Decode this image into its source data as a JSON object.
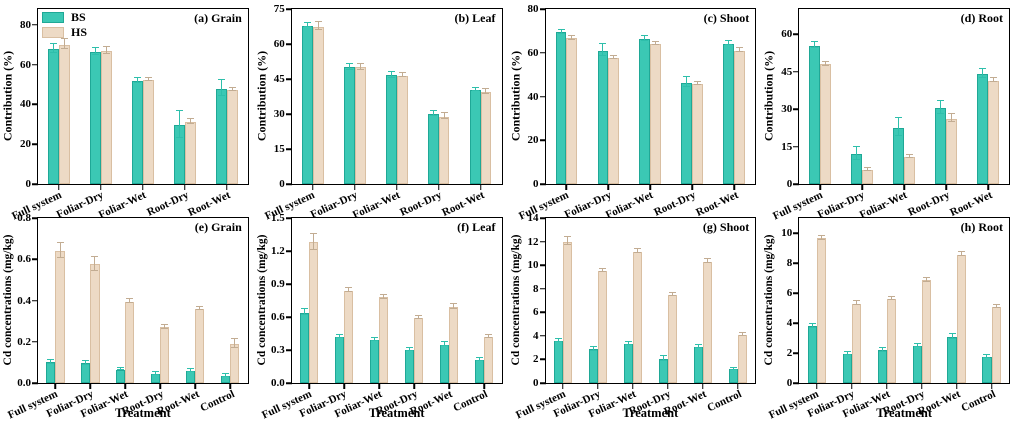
{
  "figure": {
    "legend": {
      "items": [
        {
          "label": "BS",
          "color": "#3bc8b4"
        },
        {
          "label": "HS",
          "color": "#eddac5"
        }
      ]
    },
    "colors": {
      "bs_fill": "#3bc8b4",
      "bs_edge": "#1fa896",
      "bs_err": "#2ebfab",
      "hs_fill": "#eddac5",
      "hs_edge": "#d9bfa2",
      "hs_err": "#c2ac92",
      "axis": "#000000"
    }
  },
  "chart_data": [
    {
      "id": "a",
      "type": "bar",
      "title": "(a) Grain",
      "ylabel": "Contribution (%)",
      "xlabel": "",
      "categories": [
        "Full system",
        "Foliar-Dry",
        "Foliar-Wet",
        "Root-Dry",
        "Root-Wet"
      ],
      "ylim": [
        0,
        88
      ],
      "yticks": [
        "0",
        "20",
        "40",
        "60",
        "80"
      ],
      "grid": false,
      "legend_position": "top-left",
      "series": [
        {
          "name": "BS",
          "values": [
            68,
            66.5,
            52,
            29.5,
            48
          ],
          "errors": [
            2,
            1.5,
            1,
            6.5,
            3.8
          ]
        },
        {
          "name": "HS",
          "values": [
            70,
            67,
            52.2,
            31,
            47.2
          ],
          "errors": [
            2.2,
            1.6,
            0.5,
            1,
            0.6
          ]
        }
      ]
    },
    {
      "id": "b",
      "type": "bar",
      "title": "(b) Leaf",
      "ylabel": "Contribution (%)",
      "xlabel": "",
      "categories": [
        "Full system",
        "Foliar-Dry",
        "Foliar-Wet",
        "Root-Dry",
        "Root-Wet"
      ],
      "ylim": [
        0,
        75
      ],
      "yticks": [
        "0",
        "15",
        "30",
        "45",
        "60",
        "75"
      ],
      "grid": false,
      "series": [
        {
          "name": "BS",
          "values": [
            67.8,
            50,
            46.6,
            30,
            40.3
          ],
          "errors": [
            0.6,
            1,
            1,
            1,
            0.5
          ]
        },
        {
          "name": "HS",
          "values": [
            67.4,
            50,
            46.4,
            28.8,
            39.4
          ],
          "errors": [
            1.6,
            1.2,
            0.6,
            1,
            0.8
          ]
        }
      ]
    },
    {
      "id": "c",
      "type": "bar",
      "title": "(c) Shoot",
      "ylabel": "Contribution (%)",
      "xlabel": "",
      "categories": [
        "Full system",
        "Foliar-Dry",
        "Foliar-Wet",
        "Root-Dry",
        "Root-Wet"
      ],
      "ylim": [
        0,
        80
      ],
      "yticks": [
        "0",
        "20",
        "40",
        "60",
        "80"
      ],
      "grid": false,
      "series": [
        {
          "name": "BS",
          "values": [
            69.4,
            61,
            66.4,
            46.4,
            64.2
          ],
          "errors": [
            0.6,
            2.4,
            0.8,
            2.2,
            0.8
          ]
        },
        {
          "name": "HS",
          "values": [
            66.6,
            57.6,
            64,
            45.8,
            61
          ],
          "errors": [
            0.8,
            0.6,
            0.6,
            0.6,
            0.8
          ]
        }
      ]
    },
    {
      "id": "d",
      "type": "bar",
      "title": "(d) Root",
      "ylabel": "Contribution (%)",
      "xlabel": "",
      "categories": [
        "Full system",
        "Foliar-Dry",
        "Foliar-Wet",
        "Root-Dry",
        "Root-Wet"
      ],
      "ylim": [
        0,
        70
      ],
      "yticks": [
        "0",
        "15",
        "30",
        "45",
        "60"
      ],
      "grid": false,
      "series": [
        {
          "name": "BS",
          "values": [
            55.4,
            12,
            22.6,
            30.4,
            44
          ],
          "errors": [
            1,
            2.4,
            3.4,
            2.4,
            1.6
          ]
        },
        {
          "name": "HS",
          "values": [
            48,
            5.6,
            10.8,
            26.2,
            41.4
          ],
          "errors": [
            0.6,
            0.5,
            0.5,
            1.4,
            0.6
          ]
        }
      ]
    },
    {
      "id": "e",
      "type": "bar",
      "title": "(e) Grain",
      "ylabel": "Cd concentrations (mg/kg)",
      "xlabel": "Treatment",
      "categories": [
        "Full system",
        "Foliar-Dry",
        "Foliar-Wet",
        "Root-Dry",
        "Root-Wet",
        "Control"
      ],
      "ylim": [
        0,
        0.8
      ],
      "yticks": [
        "0.0",
        "0.2",
        "0.4",
        "0.6",
        "0.8"
      ],
      "grid": false,
      "series": [
        {
          "name": "BS",
          "values": [
            0.1,
            0.095,
            0.065,
            0.045,
            0.06,
            0.035
          ],
          "errors": [
            0.008,
            0.006,
            0.004,
            0.004,
            0.005,
            0.004
          ]
        },
        {
          "name": "HS",
          "values": [
            0.64,
            0.575,
            0.395,
            0.27,
            0.36,
            0.19
          ],
          "errors": [
            0.035,
            0.03,
            0.008,
            0.006,
            0.006,
            0.02
          ]
        }
      ]
    },
    {
      "id": "f",
      "type": "bar",
      "title": "(f) Leaf",
      "ylabel": "Cd concentrations (mg/kg)",
      "xlabel": "Treatment",
      "categories": [
        "Full system",
        "Foliar-Dry",
        "Foliar-Wet",
        "Root-Dry",
        "Root-Wet",
        "Control"
      ],
      "ylim": [
        0,
        1.5
      ],
      "yticks": [
        "0.0",
        "0.3",
        "0.6",
        "0.9",
        "1.2",
        "1.5"
      ],
      "grid": false,
      "series": [
        {
          "name": "BS",
          "values": [
            0.64,
            0.42,
            0.39,
            0.3,
            0.35,
            0.21
          ],
          "errors": [
            0.02,
            0.012,
            0.01,
            0.01,
            0.01,
            0.008
          ]
        },
        {
          "name": "HS",
          "values": [
            1.28,
            0.84,
            0.78,
            0.59,
            0.69,
            0.42
          ],
          "errors": [
            0.07,
            0.015,
            0.012,
            0.01,
            0.015,
            0.01
          ]
        }
      ]
    },
    {
      "id": "g",
      "type": "bar",
      "title": "(g) Shoot",
      "ylabel": "Cd concentrations (mg/kg)",
      "xlabel": "Treatment",
      "categories": [
        "Full system",
        "Foliar-Dry",
        "Foliar-Wet",
        "Root-Dry",
        "Root-Wet",
        "Control"
      ],
      "ylim": [
        0,
        14
      ],
      "yticks": [
        "0",
        "2",
        "4",
        "6",
        "8",
        "10",
        "12",
        "14"
      ],
      "grid": false,
      "series": [
        {
          "name": "BS",
          "values": [
            3.55,
            2.85,
            3.3,
            2.05,
            3.05,
            1.15
          ],
          "errors": [
            0.1,
            0.15,
            0.1,
            0.15,
            0.08,
            0.05
          ]
        },
        {
          "name": "HS",
          "values": [
            12,
            9.5,
            11.15,
            7.45,
            10.3,
            4.05
          ],
          "errors": [
            0.3,
            0.1,
            0.15,
            0.1,
            0.12,
            0.08
          ]
        }
      ]
    },
    {
      "id": "h",
      "type": "bar",
      "title": "(h) Root",
      "ylabel": "Cd concentrations (mg/kg)",
      "xlabel": "Treatment",
      "categories": [
        "Full system",
        "Foliar-Dry",
        "Foliar-Wet",
        "Root-Dry",
        "Root-Wet",
        "Control"
      ],
      "ylim": [
        0,
        11
      ],
      "yticks": [
        "0",
        "2",
        "4",
        "6",
        "8",
        "10"
      ],
      "grid": false,
      "series": [
        {
          "name": "BS",
          "values": [
            3.8,
            1.95,
            2.2,
            2.45,
            3.05,
            1.75
          ],
          "errors": [
            0.1,
            0.08,
            0.1,
            0.08,
            0.12,
            0.06
          ]
        },
        {
          "name": "HS",
          "values": [
            9.65,
            5.3,
            5.6,
            6.85,
            8.55,
            5.05
          ],
          "errors": [
            0.1,
            0.08,
            0.08,
            0.1,
            0.1,
            0.08
          ]
        }
      ]
    }
  ]
}
